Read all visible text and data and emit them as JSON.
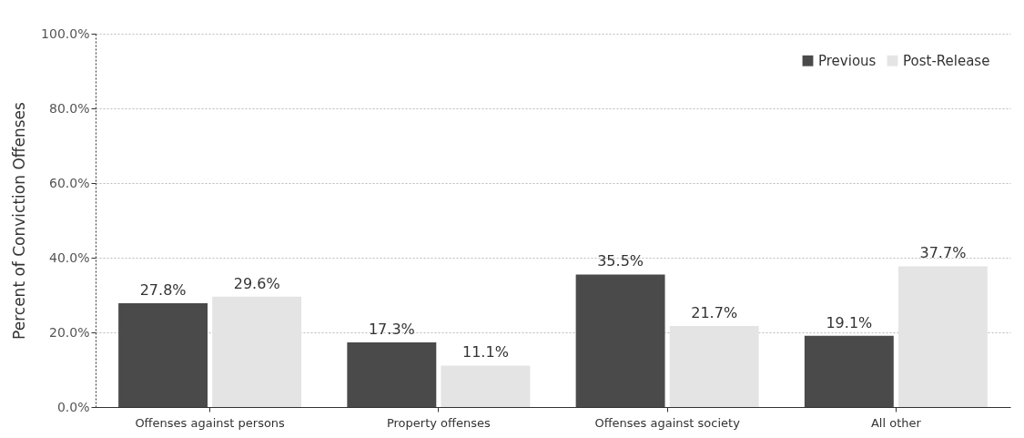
{
  "chart_data": {
    "type": "bar",
    "ylabel": "Percent of Conviction Offenses",
    "categories": [
      "Offenses against persons",
      "Property offenses",
      "Offenses against society",
      "All other"
    ],
    "series": [
      {
        "name": "Previous",
        "color": "#4a4a4a",
        "values": [
          27.8,
          17.3,
          35.5,
          19.1
        ],
        "value_labels": [
          "27.8%",
          "17.3%",
          "35.5%",
          "19.1%"
        ]
      },
      {
        "name": "Post-Release",
        "color": "#e4e4e4",
        "values": [
          29.6,
          11.1,
          21.7,
          37.7
        ],
        "value_labels": [
          "29.6%",
          "11.1%",
          "21.7%",
          "37.7%"
        ]
      }
    ],
    "ylim": [
      0,
      100
    ],
    "yticks": [
      {
        "value": 0,
        "label": "0.0%"
      },
      {
        "value": 20,
        "label": "20.0%"
      },
      {
        "value": 40,
        "label": "40.0%"
      },
      {
        "value": 60,
        "label": "60.0%"
      },
      {
        "value": 80,
        "label": "80.0%"
      },
      {
        "value": 100,
        "label": "100.0%"
      }
    ],
    "grid": "y",
    "legend": "top right"
  }
}
